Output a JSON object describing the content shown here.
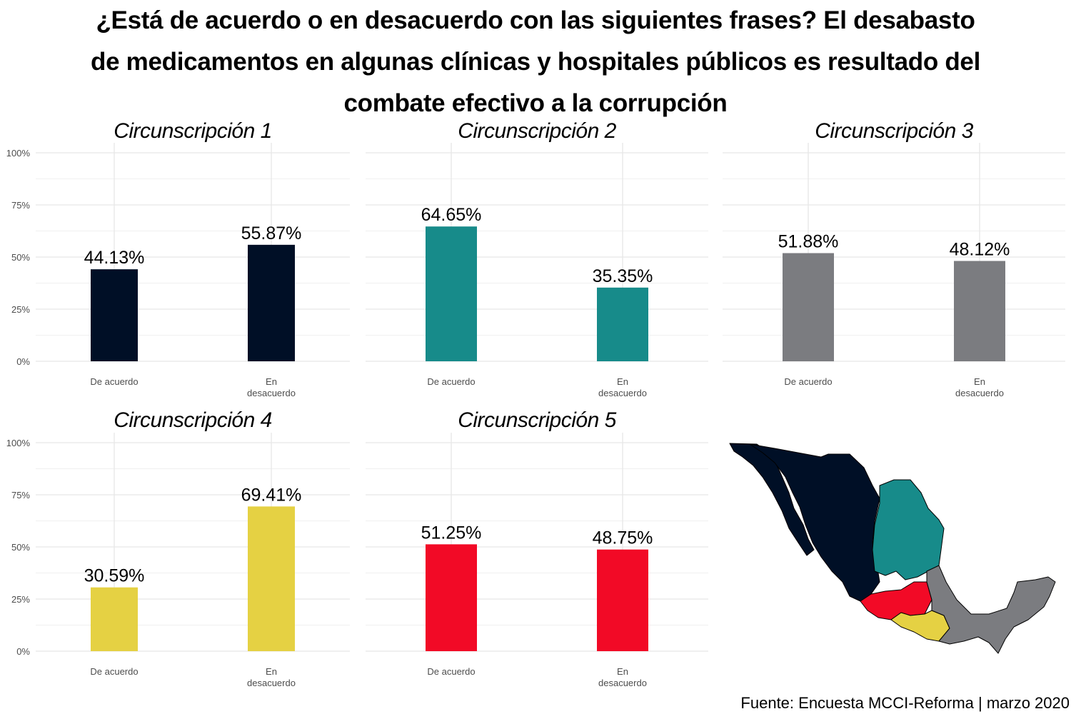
{
  "title_lines": [
    "¿Está de acuerdo o en desacuerdo con las siguientes frases? El desabasto",
    "de medicamentos en algunas clínicas y hospitales públicos es resultado del",
    "combate efectivo a la corrupción"
  ],
  "source": "Fuente: Encuesta MCCI-Reforma | marzo 2020",
  "chart_data": [
    {
      "type": "bar",
      "title": "Circunscripción 1",
      "categories": [
        "De acuerdo",
        "En\ndesacuerdo"
      ],
      "values": [
        44.13,
        55.87
      ],
      "value_labels": [
        "44.13%",
        "55.87%"
      ],
      "ylim": [
        0,
        100
      ],
      "y_ticks": [
        "0%",
        "25%",
        "50%",
        "75%",
        "100%"
      ],
      "color": "#000f26",
      "grid": true
    },
    {
      "type": "bar",
      "title": "Circunscripción 2",
      "categories": [
        "De acuerdo",
        "En\ndesacuerdo"
      ],
      "values": [
        64.65,
        35.35
      ],
      "value_labels": [
        "64.65%",
        "35.35%"
      ],
      "ylim": [
        0,
        100
      ],
      "y_ticks": [
        "0%",
        "25%",
        "50%",
        "75%",
        "100%"
      ],
      "color": "#178b8a",
      "grid": true
    },
    {
      "type": "bar",
      "title": "Circunscripción 3",
      "categories": [
        "De acuerdo",
        "En\ndesacuerdo"
      ],
      "values": [
        51.88,
        48.12
      ],
      "value_labels": [
        "51.88%",
        "48.12%"
      ],
      "ylim": [
        0,
        100
      ],
      "y_ticks": [
        "0%",
        "25%",
        "50%",
        "75%",
        "100%"
      ],
      "color": "#7b7c80",
      "grid": true
    },
    {
      "type": "bar",
      "title": "Circunscripción 4",
      "categories": [
        "De acuerdo",
        "En\ndesacuerdo"
      ],
      "values": [
        30.59,
        69.41
      ],
      "value_labels": [
        "30.59%",
        "69.41%"
      ],
      "ylim": [
        0,
        100
      ],
      "y_ticks": [
        "0%",
        "25%",
        "50%",
        "75%",
        "100%"
      ],
      "color": "#e5d143",
      "grid": true
    },
    {
      "type": "bar",
      "title": "Circunscripción 5",
      "categories": [
        "De acuerdo",
        "En\ndesacuerdo"
      ],
      "values": [
        51.25,
        48.75
      ],
      "value_labels": [
        "51.25%",
        "48.75%"
      ],
      "ylim": [
        0,
        100
      ],
      "y_ticks": [
        "0%",
        "25%",
        "50%",
        "75%",
        "100%"
      ],
      "color": "#f20a26",
      "grid": true
    }
  ],
  "map": {
    "description_colors": [
      "#000f26",
      "#178b8a",
      "#7b7c80",
      "#e5d143",
      "#f20a26"
    ],
    "icon": "mexico-map"
  }
}
